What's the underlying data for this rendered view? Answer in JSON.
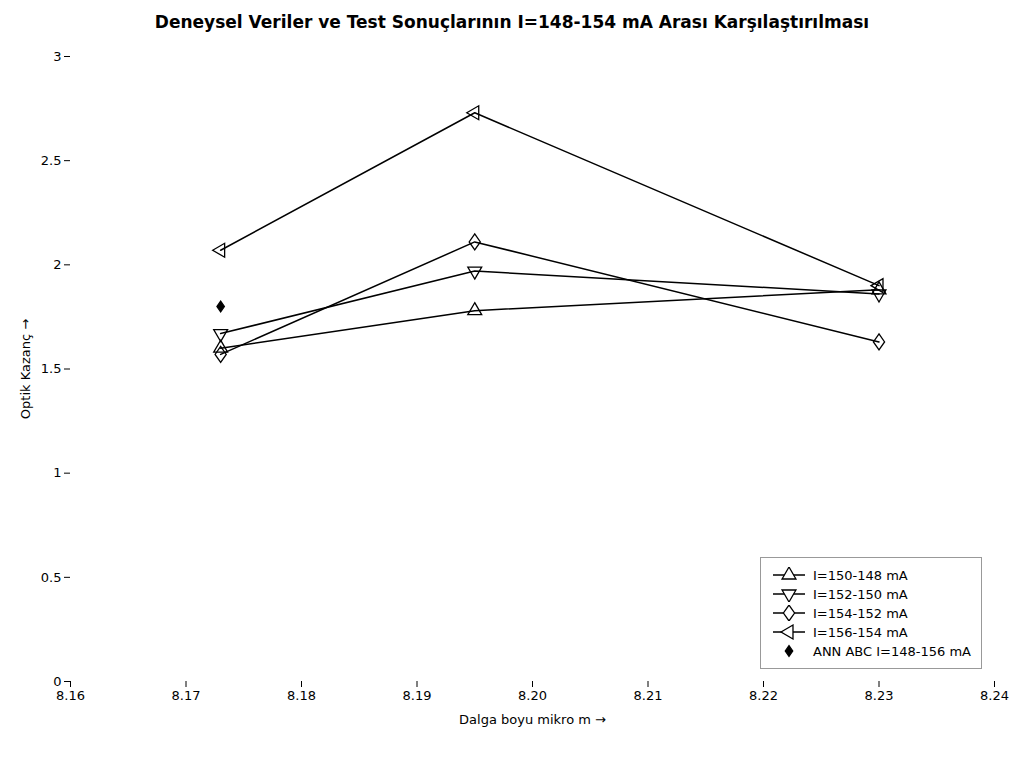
{
  "chart_data": {
    "type": "line",
    "title": "Deneysel Veriler ve Test Sonuçlarının I=148-154 mA Arası Karşılaştırılması",
    "xlabel": "Dalga boyu mikro m",
    "ylabel": "Optik Kazanç",
    "xlim": [
      8.16,
      8.24
    ],
    "ylim": [
      0,
      3
    ],
    "xticks": [
      8.16,
      8.17,
      8.18,
      8.19,
      {
        "value": 8.2,
        "label": "8.20"
      },
      8.21,
      8.22,
      8.23,
      8.24
    ],
    "yticks": [
      0,
      0.5,
      1,
      1.5,
      2,
      2.5,
      3
    ],
    "grid": false,
    "legend": "lower right",
    "series": [
      {
        "name": "I=150-148 mA",
        "x": [
          8.173,
          8.195,
          8.23
        ],
        "values": [
          1.6,
          1.78,
          1.88
        ],
        "color": "black",
        "marker": "triangle-up"
      },
      {
        "name": "I=152-150 mA",
        "x": [
          8.173,
          8.195,
          8.23
        ],
        "values": [
          1.67,
          1.97,
          1.86
        ],
        "color": "black",
        "marker": "triangle-down"
      },
      {
        "name": "I=154-152 mA",
        "x": [
          8.173,
          8.195,
          8.23
        ],
        "values": [
          1.57,
          2.11,
          1.63
        ],
        "color": "black",
        "marker": "diamond"
      },
      {
        "name": "I=156-154 mA",
        "x": [
          8.173,
          8.195,
          8.23
        ],
        "values": [
          2.07,
          2.73,
          1.9
        ],
        "color": "black",
        "marker": "triangle-left"
      },
      {
        "name": "ANN ABC I=148-156 mA",
        "type": "scatter",
        "x": [
          8.173
        ],
        "values": [
          1.8
        ],
        "color": "black",
        "marker": "diamond-filled"
      }
    ]
  }
}
